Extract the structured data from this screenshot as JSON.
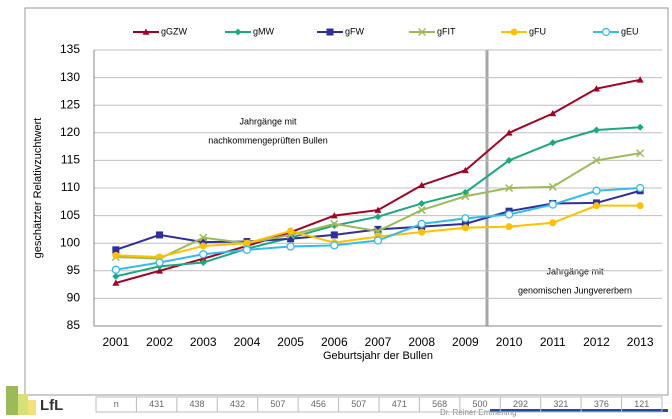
{
  "chart_data": {
    "type": "line",
    "ylabel": "geschätzter Relativzuchtwert",
    "xlabel": "Geburtsjahr der Bullen",
    "categories": [
      "2001",
      "2002",
      "2003",
      "2004",
      "2005",
      "2006",
      "2007",
      "2008",
      "2009",
      "2010",
      "2011",
      "2012",
      "2013"
    ],
    "ylim": [
      85,
      135
    ],
    "yticks": [
      85,
      90,
      95,
      100,
      105,
      110,
      115,
      120,
      125,
      130,
      135
    ],
    "grid": true,
    "annotations": [
      "Jahrgänge mit",
      "nachkommengeprüften Bullen",
      "Jahrgänge mit",
      "genomischen Jungvererbern"
    ],
    "series": [
      {
        "name": "gGZW",
        "color": "#a50021",
        "marker": "triangle",
        "values": [
          92.8,
          95,
          97.2,
          99.5,
          102,
          105,
          106,
          110.5,
          113.2,
          120,
          123.5,
          128,
          129.6
        ]
      },
      {
        "name": "gMW",
        "color": "#1aaa80",
        "marker": "diamond",
        "values": [
          94,
          95.8,
          96.5,
          99,
          101,
          103.2,
          104.8,
          107.2,
          109.2,
          115,
          118.2,
          120.5,
          121
        ]
      },
      {
        "name": "gFW",
        "color": "#2e2e9e",
        "marker": "square",
        "values": [
          98.8,
          101.5,
          100.2,
          100.3,
          100.8,
          101.5,
          102.5,
          103,
          103.5,
          105.8,
          107.2,
          107.3,
          109.5
        ]
      },
      {
        "name": "gFIT",
        "color": "#9bbb59",
        "marker": "cross",
        "values": [
          97.5,
          97.2,
          101,
          100,
          101.5,
          103.5,
          102.2,
          106,
          108.5,
          110,
          110.2,
          115,
          116.3
        ]
      },
      {
        "name": "gFU",
        "color": "#ffc000",
        "marker": "circle",
        "values": [
          97.8,
          97.5,
          99.5,
          100,
          102.2,
          100.1,
          101.2,
          102,
          102.8,
          103,
          103.7,
          106.8,
          106.8
        ]
      },
      {
        "name": "gEU",
        "color": "#33bbee",
        "marker": "open-circle",
        "values": [
          95.2,
          96.5,
          98,
          98.8,
          99.4,
          99.6,
          100.5,
          103.5,
          104.5,
          105.2,
          107,
          109.5,
          110
        ]
      }
    ],
    "table": {
      "header": "n",
      "values": [
        431,
        438,
        432,
        507,
        456,
        507,
        471,
        568,
        500,
        292,
        321,
        376,
        121
      ]
    }
  },
  "logo": "LfL",
  "footer": "Dr. Reiner Emmerling"
}
